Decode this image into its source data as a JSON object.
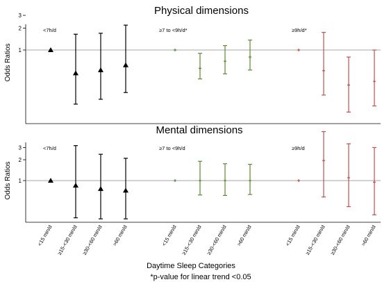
{
  "chart_data": [
    {
      "type": "scatter",
      "title": "Physical dimensions",
      "ylabel": "Odds Ratios",
      "y_ticks": [
        "1",
        "2",
        "3"
      ],
      "y_scale": "log",
      "reference_line": 1,
      "groups": [
        {
          "label": "<7h/d",
          "color": "#000000",
          "marker": "triangle",
          "categories": [
            "<15 min/d",
            "≥15-<30 min/d",
            "≥30-<60 min/d",
            ">60 min/d"
          ],
          "values": [
            {
              "or": 1.0,
              "lower": null,
              "upper": null
            },
            {
              "or": 0.48,
              "lower": 0.18,
              "upper": 1.65
            },
            {
              "or": 0.53,
              "lower": 0.21,
              "upper": 1.7
            },
            {
              "or": 0.62,
              "lower": 0.26,
              "upper": 2.2
            }
          ]
        },
        {
          "label": "≥7 to <9h/d*",
          "color": "#5b8a2e",
          "marker": "plus",
          "categories": [
            "<15 min/d",
            "≥15-<30 min/d",
            "≥30-<60 min/d",
            ">60 min/d"
          ],
          "values": [
            {
              "or": 1.0,
              "lower": null,
              "upper": null
            },
            {
              "or": 0.56,
              "lower": 0.4,
              "upper": 0.9
            },
            {
              "or": 0.7,
              "lower": 0.47,
              "upper": 1.15
            },
            {
              "or": 0.8,
              "lower": 0.53,
              "upper": 1.37
            }
          ]
        },
        {
          "label": "≥9h/d*",
          "color": "#c0504d",
          "marker": "plus",
          "categories": [
            "<15 min/d",
            "≥15-<30 min/d",
            "≥30-<60 min/d",
            ">60 min/d"
          ],
          "values": [
            {
              "or": 1.0,
              "lower": null,
              "upper": null
            },
            {
              "or": 0.52,
              "lower": 0.24,
              "upper": 1.75
            },
            {
              "or": 0.33,
              "lower": 0.14,
              "upper": 0.8
            },
            {
              "or": 0.37,
              "lower": 0.17,
              "upper": 1.0
            }
          ]
        }
      ]
    },
    {
      "type": "scatter",
      "title": "Mental dimensions",
      "ylabel": "Odds Ratios",
      "y_ticks": [
        "1",
        "2",
        "3"
      ],
      "y_scale": "log",
      "reference_line": 1,
      "groups": [
        {
          "label": "<7h/d",
          "color": "#000000",
          "marker": "triangle",
          "categories": [
            "<15 min/d",
            "≥15-<30 min/d",
            "≥30-<60 min/d",
            ">60 min/d"
          ],
          "values": [
            {
              "or": 1.0,
              "lower": null,
              "upper": null
            },
            {
              "or": 0.85,
              "lower": 0.29,
              "upper": 3.2
            },
            {
              "or": 0.76,
              "lower": 0.28,
              "upper": 2.4
            },
            {
              "or": 0.72,
              "lower": 0.28,
              "upper": 2.1
            }
          ]
        },
        {
          "label": "≥7 to <9h/d",
          "color": "#5b8a2e",
          "marker": "plus",
          "categories": [
            "<15 min/d",
            "≥15-<30 min/d",
            "≥30-<60 min/d",
            ">60 min/d"
          ],
          "values": [
            {
              "or": 1.0,
              "lower": null,
              "upper": null
            },
            {
              "or": 1.0,
              "lower": 0.62,
              "upper": 1.9
            },
            {
              "or": 1.0,
              "lower": 0.61,
              "upper": 1.75
            },
            {
              "or": 1.0,
              "lower": 0.63,
              "upper": 1.72
            }
          ]
        },
        {
          "label": "≥9h/d",
          "color": "#c0504d",
          "marker": "plus",
          "categories": [
            "<15 min/d",
            "≥15-<30 min/d",
            "≥30-<60 min/d",
            ">60 min/d"
          ],
          "values": [
            {
              "or": 1.0,
              "lower": null,
              "upper": null
            },
            {
              "or": 1.95,
              "lower": 0.58,
              "upper": 5.1
            },
            {
              "or": 1.1,
              "lower": 0.42,
              "upper": 3.4
            },
            {
              "or": 0.95,
              "lower": 0.32,
              "upper": 3.0
            }
          ]
        }
      ]
    }
  ],
  "xlabel": "Daytime Sleep Categories",
  "footnote": "*p-value for linear trend <0.05"
}
